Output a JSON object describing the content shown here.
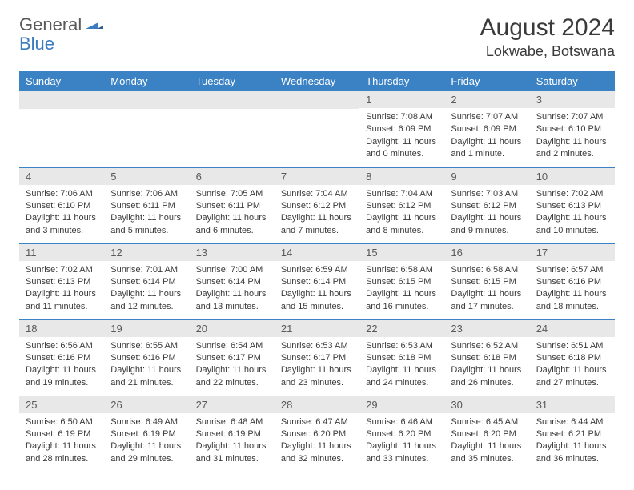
{
  "logo": {
    "general": "General",
    "blue": "Blue"
  },
  "title": {
    "month_year": "August 2024",
    "location": "Lokwabe, Botswana"
  },
  "colors": {
    "header_bg": "#3b82c4",
    "header_text": "#ffffff",
    "daynum_bg": "#e8e8e8",
    "border": "#3b82c4",
    "logo_blue": "#3b7bbf",
    "logo_gray": "#5a5a5a"
  },
  "weekdays": [
    "Sunday",
    "Monday",
    "Tuesday",
    "Wednesday",
    "Thursday",
    "Friday",
    "Saturday"
  ],
  "weeks": [
    [
      {
        "empty": true
      },
      {
        "empty": true
      },
      {
        "empty": true
      },
      {
        "empty": true
      },
      {
        "num": "1",
        "sunrise": "Sunrise: 7:08 AM",
        "sunset": "Sunset: 6:09 PM",
        "daylight": "Daylight: 11 hours and 0 minutes."
      },
      {
        "num": "2",
        "sunrise": "Sunrise: 7:07 AM",
        "sunset": "Sunset: 6:09 PM",
        "daylight": "Daylight: 11 hours and 1 minute."
      },
      {
        "num": "3",
        "sunrise": "Sunrise: 7:07 AM",
        "sunset": "Sunset: 6:10 PM",
        "daylight": "Daylight: 11 hours and 2 minutes."
      }
    ],
    [
      {
        "num": "4",
        "sunrise": "Sunrise: 7:06 AM",
        "sunset": "Sunset: 6:10 PM",
        "daylight": "Daylight: 11 hours and 3 minutes."
      },
      {
        "num": "5",
        "sunrise": "Sunrise: 7:06 AM",
        "sunset": "Sunset: 6:11 PM",
        "daylight": "Daylight: 11 hours and 5 minutes."
      },
      {
        "num": "6",
        "sunrise": "Sunrise: 7:05 AM",
        "sunset": "Sunset: 6:11 PM",
        "daylight": "Daylight: 11 hours and 6 minutes."
      },
      {
        "num": "7",
        "sunrise": "Sunrise: 7:04 AM",
        "sunset": "Sunset: 6:12 PM",
        "daylight": "Daylight: 11 hours and 7 minutes."
      },
      {
        "num": "8",
        "sunrise": "Sunrise: 7:04 AM",
        "sunset": "Sunset: 6:12 PM",
        "daylight": "Daylight: 11 hours and 8 minutes."
      },
      {
        "num": "9",
        "sunrise": "Sunrise: 7:03 AM",
        "sunset": "Sunset: 6:12 PM",
        "daylight": "Daylight: 11 hours and 9 minutes."
      },
      {
        "num": "10",
        "sunrise": "Sunrise: 7:02 AM",
        "sunset": "Sunset: 6:13 PM",
        "daylight": "Daylight: 11 hours and 10 minutes."
      }
    ],
    [
      {
        "num": "11",
        "sunrise": "Sunrise: 7:02 AM",
        "sunset": "Sunset: 6:13 PM",
        "daylight": "Daylight: 11 hours and 11 minutes."
      },
      {
        "num": "12",
        "sunrise": "Sunrise: 7:01 AM",
        "sunset": "Sunset: 6:14 PM",
        "daylight": "Daylight: 11 hours and 12 minutes."
      },
      {
        "num": "13",
        "sunrise": "Sunrise: 7:00 AM",
        "sunset": "Sunset: 6:14 PM",
        "daylight": "Daylight: 11 hours and 13 minutes."
      },
      {
        "num": "14",
        "sunrise": "Sunrise: 6:59 AM",
        "sunset": "Sunset: 6:14 PM",
        "daylight": "Daylight: 11 hours and 15 minutes."
      },
      {
        "num": "15",
        "sunrise": "Sunrise: 6:58 AM",
        "sunset": "Sunset: 6:15 PM",
        "daylight": "Daylight: 11 hours and 16 minutes."
      },
      {
        "num": "16",
        "sunrise": "Sunrise: 6:58 AM",
        "sunset": "Sunset: 6:15 PM",
        "daylight": "Daylight: 11 hours and 17 minutes."
      },
      {
        "num": "17",
        "sunrise": "Sunrise: 6:57 AM",
        "sunset": "Sunset: 6:16 PM",
        "daylight": "Daylight: 11 hours and 18 minutes."
      }
    ],
    [
      {
        "num": "18",
        "sunrise": "Sunrise: 6:56 AM",
        "sunset": "Sunset: 6:16 PM",
        "daylight": "Daylight: 11 hours and 19 minutes."
      },
      {
        "num": "19",
        "sunrise": "Sunrise: 6:55 AM",
        "sunset": "Sunset: 6:16 PM",
        "daylight": "Daylight: 11 hours and 21 minutes."
      },
      {
        "num": "20",
        "sunrise": "Sunrise: 6:54 AM",
        "sunset": "Sunset: 6:17 PM",
        "daylight": "Daylight: 11 hours and 22 minutes."
      },
      {
        "num": "21",
        "sunrise": "Sunrise: 6:53 AM",
        "sunset": "Sunset: 6:17 PM",
        "daylight": "Daylight: 11 hours and 23 minutes."
      },
      {
        "num": "22",
        "sunrise": "Sunrise: 6:53 AM",
        "sunset": "Sunset: 6:18 PM",
        "daylight": "Daylight: 11 hours and 24 minutes."
      },
      {
        "num": "23",
        "sunrise": "Sunrise: 6:52 AM",
        "sunset": "Sunset: 6:18 PM",
        "daylight": "Daylight: 11 hours and 26 minutes."
      },
      {
        "num": "24",
        "sunrise": "Sunrise: 6:51 AM",
        "sunset": "Sunset: 6:18 PM",
        "daylight": "Daylight: 11 hours and 27 minutes."
      }
    ],
    [
      {
        "num": "25",
        "sunrise": "Sunrise: 6:50 AM",
        "sunset": "Sunset: 6:19 PM",
        "daylight": "Daylight: 11 hours and 28 minutes."
      },
      {
        "num": "26",
        "sunrise": "Sunrise: 6:49 AM",
        "sunset": "Sunset: 6:19 PM",
        "daylight": "Daylight: 11 hours and 29 minutes."
      },
      {
        "num": "27",
        "sunrise": "Sunrise: 6:48 AM",
        "sunset": "Sunset: 6:19 PM",
        "daylight": "Daylight: 11 hours and 31 minutes."
      },
      {
        "num": "28",
        "sunrise": "Sunrise: 6:47 AM",
        "sunset": "Sunset: 6:20 PM",
        "daylight": "Daylight: 11 hours and 32 minutes."
      },
      {
        "num": "29",
        "sunrise": "Sunrise: 6:46 AM",
        "sunset": "Sunset: 6:20 PM",
        "daylight": "Daylight: 11 hours and 33 minutes."
      },
      {
        "num": "30",
        "sunrise": "Sunrise: 6:45 AM",
        "sunset": "Sunset: 6:20 PM",
        "daylight": "Daylight: 11 hours and 35 minutes."
      },
      {
        "num": "31",
        "sunrise": "Sunrise: 6:44 AM",
        "sunset": "Sunset: 6:21 PM",
        "daylight": "Daylight: 11 hours and 36 minutes."
      }
    ]
  ]
}
